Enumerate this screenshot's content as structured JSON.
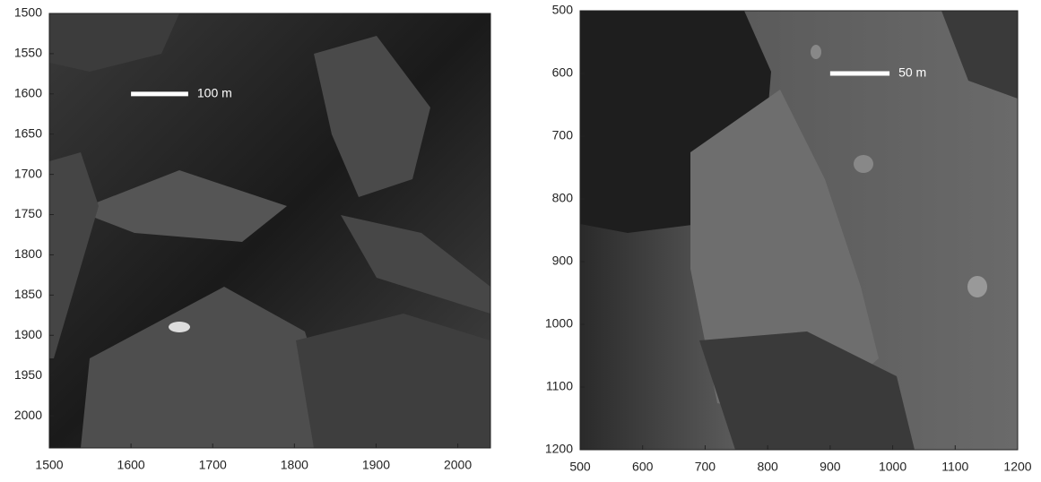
{
  "chart_data": [
    {
      "type": "image",
      "xlim": [
        1500,
        2040
      ],
      "ylim": [
        1500,
        2040
      ],
      "y_reversed": true,
      "xticks": [
        1500,
        1600,
        1700,
        1800,
        1900,
        2000
      ],
      "yticks": [
        1500,
        1550,
        1600,
        1650,
        1700,
        1750,
        1800,
        1850,
        1900,
        1950,
        2000
      ],
      "scale_bar": {
        "x": [
          1600,
          1670
        ],
        "y": 1600,
        "label": "100 m",
        "color": "#ffffff"
      }
    },
    {
      "type": "image",
      "xlim": [
        500,
        1200
      ],
      "ylim": [
        500,
        1200
      ],
      "y_reversed": true,
      "xticks": [
        500,
        600,
        700,
        800,
        900,
        1000,
        1100,
        1200
      ],
      "yticks": [
        500,
        600,
        700,
        800,
        900,
        1000,
        1100,
        1200
      ],
      "scale_bar": {
        "x": [
          900,
          995
        ],
        "y": 600,
        "label": "50 m",
        "color": "#ffffff"
      }
    }
  ]
}
